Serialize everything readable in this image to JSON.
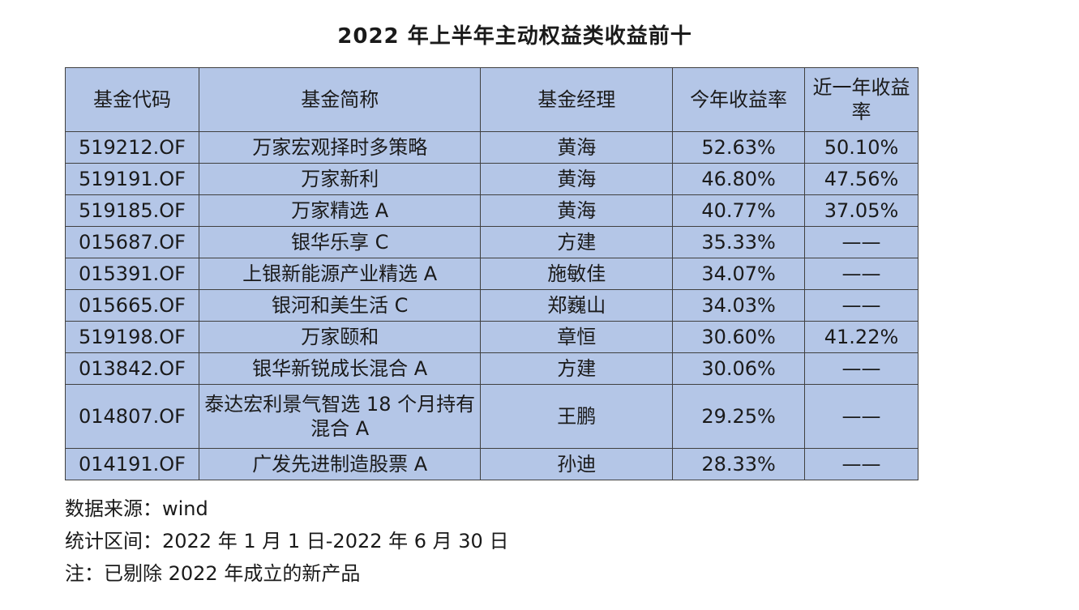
{
  "title": "2022 年上半年主动权益类收益前十",
  "table": {
    "headers": [
      "基金代码",
      "基金简称",
      "基金经理",
      "今年收益率",
      "近一年收益率"
    ],
    "rows": [
      [
        "519212.OF",
        "万家宏观择时多策略",
        "黄海",
        "52.63%",
        "50.10%"
      ],
      [
        "519191.OF",
        "万家新利",
        "黄海",
        "46.80%",
        "47.56%"
      ],
      [
        "519185.OF",
        "万家精选 A",
        "黄海",
        "40.77%",
        "37.05%"
      ],
      [
        "015687.OF",
        "银华乐享 C",
        "方建",
        "35.33%",
        "——"
      ],
      [
        "015391.OF",
        "上银新能源产业精选 A",
        "施敏佳",
        "34.07%",
        "——"
      ],
      [
        "015665.OF",
        "银河和美生活 C",
        "郑巍山",
        "34.03%",
        "——"
      ],
      [
        "519198.OF",
        "万家颐和",
        "章恒",
        "30.60%",
        "41.22%"
      ],
      [
        "013842.OF",
        "银华新锐成长混合 A",
        "方建",
        "30.06%",
        "——"
      ],
      [
        "014807.OF",
        "泰达宏利景气智选 18 个月持有混合 A",
        "王鹏",
        "29.25%",
        "——"
      ],
      [
        "014191.OF",
        "广发先进制造股票 A",
        "孙迪",
        "28.33%",
        "——"
      ]
    ]
  },
  "notes": [
    "数据来源：wind",
    "统计区间：2022 年 1 月 1 日-2022 年 6 月 30 日",
    "注：已剔除 2022 年成立的新产品"
  ],
  "colors": {
    "table_fill": "#b4c6e7",
    "border": "#404040"
  }
}
